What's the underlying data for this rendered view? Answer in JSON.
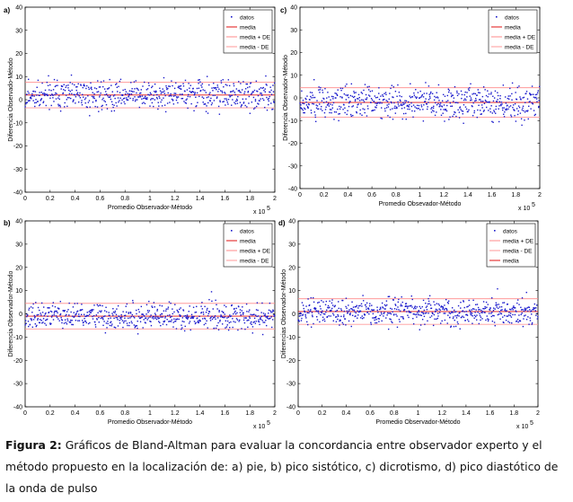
{
  "figure": {
    "caption": {
      "label": "Figura 2:",
      "text": " Gráficos de Bland-Altman para evaluar la concordancia entre observador experto y el método propuesto en la localización de: a) pie, b) pico sistótico, c) dicrotismo, d) pico diastótico de la onda de pulso"
    }
  },
  "colors": {
    "points": "#1a1acc",
    "mean": "#e01010",
    "sd_plus": "#ff8a8a",
    "sd_minus": "#ff9a9a"
  },
  "chart_data": [
    {
      "panel": "a)",
      "type": "scatter",
      "xlabel": "Promedio Observador-Método",
      "ylabel": "Diferencia Observado-Método",
      "x_multiplier": "x 10",
      "x_multiplier_exp": "5",
      "xlim": [
        0,
        2
      ],
      "ylim": [
        -40,
        40
      ],
      "xticks": [
        "0",
        "0.2",
        "0.4",
        "0.6",
        "0.8",
        "1",
        "1.2",
        "1.4",
        "1.6",
        "1.8",
        "2"
      ],
      "yticks": [
        "40",
        "30",
        "20",
        "10",
        "0",
        "-10",
        "-20",
        "-30",
        "-40"
      ],
      "legend_position": "top-right",
      "legend": [
        "datos",
        "media",
        "media + DE",
        "media - DE"
      ],
      "mean": 2,
      "mean_plus_sd": 7.5,
      "mean_minus_sd": -3.5,
      "point_spread": 3.2,
      "n_points": 620,
      "seed": 11
    },
    {
      "panel": "c)",
      "type": "scatter",
      "xlabel": "Promedio Obsevador-Método",
      "ylabel": "Diferencia Observador-Método",
      "x_multiplier": "x 10",
      "x_multiplier_exp": "5",
      "xlim": [
        0,
        2
      ],
      "ylim": [
        -40,
        40
      ],
      "xticks": [
        "0",
        "0.2",
        "0.4",
        "0.6",
        "0.8",
        "1",
        "1.2",
        "1.4",
        "1.6",
        "1.8",
        "2"
      ],
      "yticks": [
        "40",
        "30",
        "20",
        "10",
        "0",
        "-10",
        "-20",
        "-30",
        "-40"
      ],
      "legend_position": "top-right",
      "legend": [
        "datos",
        "media",
        "media + DE",
        "media - DE"
      ],
      "mean": -2,
      "mean_plus_sd": 4.5,
      "mean_minus_sd": -8.5,
      "point_spread": 3.6,
      "n_points": 620,
      "seed": 23
    },
    {
      "panel": "b)",
      "type": "scatter",
      "xlabel": "Promedio Observador-Método",
      "ylabel": "Diferencia Observador-Método",
      "x_multiplier": "x 10",
      "x_multiplier_exp": "5",
      "xlim": [
        0,
        2
      ],
      "ylim": [
        -40,
        40
      ],
      "xticks": [
        "0",
        "0.2",
        "0.4",
        "0.6",
        "0.8",
        "1",
        "1.2",
        "1.4",
        "1.6",
        "1.8",
        "2"
      ],
      "yticks": [
        "40",
        "30",
        "20",
        "10",
        "0",
        "-10",
        "-20",
        "-30",
        "-40"
      ],
      "legend_position": "top-right",
      "legend": [
        "datos",
        "media",
        "media + DE",
        "media - DE"
      ],
      "mean": -1,
      "mean_plus_sd": 4.5,
      "mean_minus_sd": -6.5,
      "point_spread": 2.8,
      "n_points": 620,
      "seed": 37
    },
    {
      "panel": "d)",
      "type": "scatter",
      "xlabel": "Promedio Observador-Método",
      "ylabel": "Diferencias Observador-Método",
      "x_multiplier": "x 10",
      "x_multiplier_exp": "5",
      "xlim": [
        0,
        2
      ],
      "ylim": [
        -40,
        40
      ],
      "xticks": [
        "0",
        "0.2",
        "0.4",
        "0.6",
        "0.8",
        "1",
        "1.2",
        "1.4",
        "1.6",
        "1.8",
        "2"
      ],
      "yticks": [
        "40",
        "30",
        "20",
        "10",
        "0",
        "-10",
        "-20",
        "-30",
        "-40"
      ],
      "legend_position": "top-right",
      "legend": [
        "datos",
        "media + DE",
        "media - DE",
        "media"
      ],
      "mean": 1,
      "mean_plus_sd": 6.5,
      "mean_minus_sd": -4.5,
      "point_spread": 2.8,
      "n_points": 620,
      "seed": 53
    }
  ]
}
